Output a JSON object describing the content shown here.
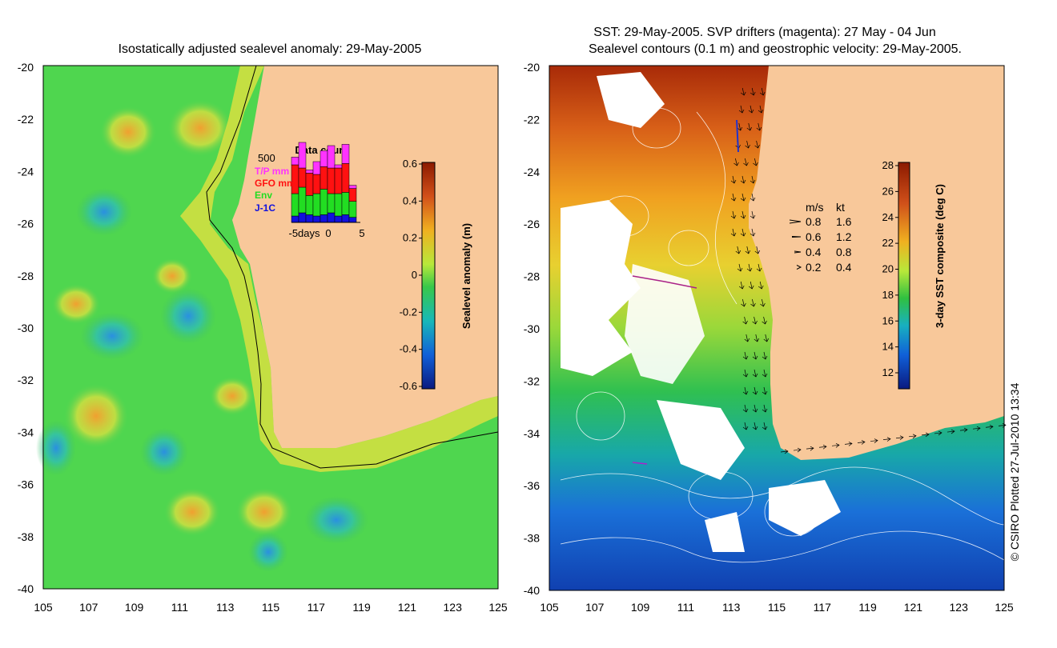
{
  "left_panel": {
    "title": "Isostatically adjusted sealevel anomaly: 29-May-2005",
    "colorbar_label": "Sealevel anomaly (m)",
    "colorbar_ticks": [
      "0.6",
      "0.4",
      "0.2",
      "0",
      "-0.2",
      "-0.4",
      "-0.6"
    ],
    "inset": {
      "title": "Data count",
      "y_max_label": "500",
      "legend": [
        {
          "label": "T/P mm",
          "color": "#ff33ff"
        },
        {
          "label": "GFO mm",
          "color": "#ff1111"
        },
        {
          "label": "Env",
          "color": "#22dd22"
        },
        {
          "label": "J-1C",
          "color": "#1111dd"
        }
      ],
      "x_labels": [
        "-5days",
        "0",
        "5"
      ],
      "bars": [
        {
          "tp": 0.12,
          "gfo": 0.45,
          "env": 0.35,
          "j1": 0.1
        },
        {
          "tp": 0.4,
          "gfo": 0.3,
          "env": 0.4,
          "j1": 0.15
        },
        {
          "tp": 0.05,
          "gfo": 0.35,
          "env": 0.3,
          "j1": 0.12
        },
        {
          "tp": 0.2,
          "gfo": 0.3,
          "env": 0.35,
          "j1": 0.1
        },
        {
          "tp": 0.25,
          "gfo": 0.35,
          "env": 0.4,
          "j1": 0.12
        },
        {
          "tp": 0.35,
          "gfo": 0.4,
          "env": 0.3,
          "j1": 0.15
        },
        {
          "tp": 0.05,
          "gfo": 0.4,
          "env": 0.35,
          "j1": 0.1
        },
        {
          "tp": 0.3,
          "gfo": 0.45,
          "env": 0.35,
          "j1": 0.12
        },
        {
          "tp": 0.05,
          "gfo": 0.2,
          "env": 0.25,
          "j1": 0.08
        }
      ]
    }
  },
  "right_panel": {
    "title_line1": "SST: 29-May-2005. SVP drifters (magenta): 27 May - 04 Jun",
    "title_line2": "Sealevel contours (0.1 m) and geostrophic velocity: 29-May-2005.",
    "colorbar_label": "3-day SST composite (deg C)",
    "colorbar_ticks": [
      "28",
      "26",
      "24",
      "22",
      "20",
      "18",
      "16",
      "14",
      "12"
    ],
    "velocity_legend": {
      "header_ms": "m/s",
      "header_kt": "kt",
      "rows": [
        {
          "ms": "0.8",
          "kt": "1.6"
        },
        {
          "ms": "0.6",
          "kt": "1.2"
        },
        {
          "ms": "0.4",
          "kt": "0.8"
        },
        {
          "ms": "0.2",
          "kt": "0.4"
        }
      ]
    }
  },
  "axes": {
    "lat_ticks": [
      "-20",
      "-22",
      "-24",
      "-26",
      "-28",
      "-30",
      "-32",
      "-34",
      "-36",
      "-38",
      "-40"
    ],
    "lon_ticks": [
      "105",
      "107",
      "109",
      "111",
      "113",
      "115",
      "117",
      "119",
      "121",
      "123",
      "125"
    ]
  },
  "credit": "© CSIRO Plotted 27-Jul-2010 13:34",
  "colors": {
    "land": "#f8c89a",
    "ocean_green": "#4fd64f",
    "sst_warm": "#b03a10",
    "sst_cool": "#1a66d6"
  }
}
